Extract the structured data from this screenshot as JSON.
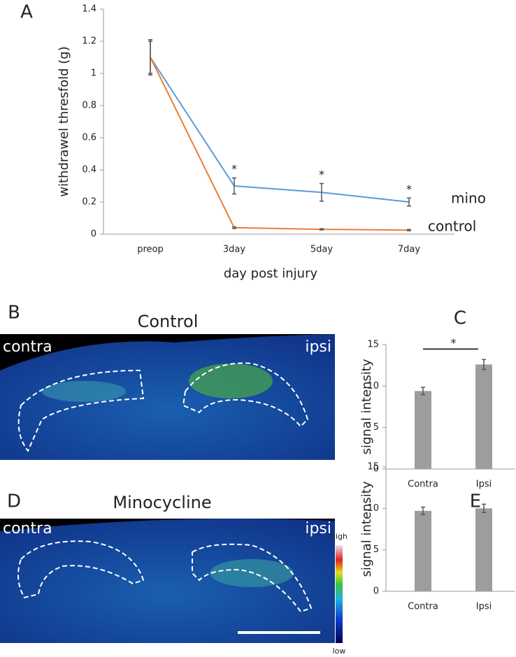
{
  "chart_data": [
    {
      "type": "line",
      "panel": "A",
      "ylabel": "withdrawel thresfold (g)",
      "xlabel": "day post injury",
      "categories": [
        "preop",
        "3day",
        "5day",
        "7day"
      ],
      "series": [
        {
          "name": "mino",
          "color": "#5b9bd5",
          "values": [
            1.1,
            0.3,
            0.26,
            0.2
          ],
          "errors": [
            0.11,
            0.05,
            0.055,
            0.025
          ]
        },
        {
          "name": "control",
          "color": "#ed7d31",
          "values": [
            1.1,
            0.04,
            0.03,
            0.025
          ],
          "errors": [
            0.1,
            0.005,
            0.004,
            0.004
          ]
        }
      ],
      "annotations": [
        "*",
        "*",
        "*"
      ],
      "ylim": [
        0,
        1.4
      ],
      "yticks": [
        0,
        0.2,
        0.4,
        0.6,
        0.8,
        1,
        1.2,
        1.4
      ]
    },
    {
      "type": "bar",
      "panel": "C",
      "ylabel": "signal intensity",
      "categories": [
        "Contra",
        "Ipsi"
      ],
      "values": [
        9.4,
        12.6
      ],
      "errors": [
        0.45,
        0.6
      ],
      "color": "#9d9d9d",
      "annotations": [
        "*"
      ],
      "ylim": [
        0,
        15
      ],
      "yticks": [
        0,
        5,
        10,
        15
      ]
    },
    {
      "type": "bar",
      "panel": "E",
      "ylabel": "signal intensity",
      "categories": [
        "Contra",
        "Ipsi"
      ],
      "values": [
        9.7,
        10.0
      ],
      "errors": [
        0.45,
        0.5
      ],
      "color": "#9d9d9d",
      "annotations": [],
      "ylim": [
        0,
        15
      ],
      "yticks": [
        0,
        5,
        10,
        15
      ]
    }
  ],
  "images": [
    {
      "panel": "B",
      "title": "Control",
      "left": "contra",
      "right": "ipsi"
    },
    {
      "panel": "D",
      "title": "Minocycline",
      "left": "contra",
      "right": "ipsi"
    }
  ],
  "colorbar": {
    "high": "high",
    "low": "low"
  }
}
